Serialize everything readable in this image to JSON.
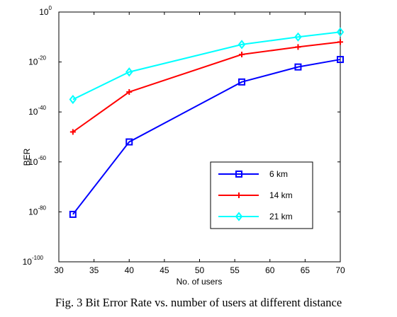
{
  "chart_data": {
    "type": "line",
    "title": "",
    "xlabel": "No. of users",
    "ylabel": "BER",
    "xlim": [
      30,
      70
    ],
    "ylim_log10": [
      -100,
      0
    ],
    "yscale": "log",
    "x_ticks": [
      "30",
      "35",
      "40",
      "45",
      "50",
      "55",
      "60",
      "65",
      "70"
    ],
    "y_tick_base": "10",
    "y_tick_exponents": [
      "0",
      "-20",
      "-40",
      "-60",
      "-80",
      "-100"
    ],
    "grid": false,
    "legend_position": "lower-right",
    "series": [
      {
        "name": "6 km",
        "color": "#0000ff",
        "marker": "square",
        "x": [
          32,
          40,
          56,
          64,
          70
        ],
        "log10_values": [
          -81,
          -52,
          -28,
          -22,
          -19
        ]
      },
      {
        "name": "14 km",
        "color": "#ff0000",
        "marker": "plus",
        "x": [
          32,
          40,
          56,
          64,
          70
        ],
        "log10_values": [
          -48,
          -32,
          -17,
          -14,
          -12
        ]
      },
      {
        "name": "21 km",
        "color": "#00ffff",
        "marker": "diamond",
        "x": [
          32,
          40,
          56,
          64,
          70
        ],
        "log10_values": [
          -35,
          -24,
          -13,
          -10,
          -8
        ]
      }
    ]
  },
  "caption": "Fig. 3 Bit Error Rate vs. number of users at different distance"
}
